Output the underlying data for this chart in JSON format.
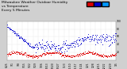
{
  "title": "Milwaukee Weather Outdoor Humidity",
  "title2": "vs Temperature",
  "title3": "Every 5 Minutes",
  "background_color": "#d0d0d0",
  "plot_bg_color": "#ffffff",
  "blue_color": "#0000cc",
  "red_color": "#dd0000",
  "cyan_color": "#0099ff",
  "grid_color": "#bbbbbb",
  "num_points": 300,
  "seed": 7,
  "title_fontsize": 3.2,
  "tick_fontsize": 2.2,
  "legend_fontsize": 2.8,
  "dot_size": 0.4
}
